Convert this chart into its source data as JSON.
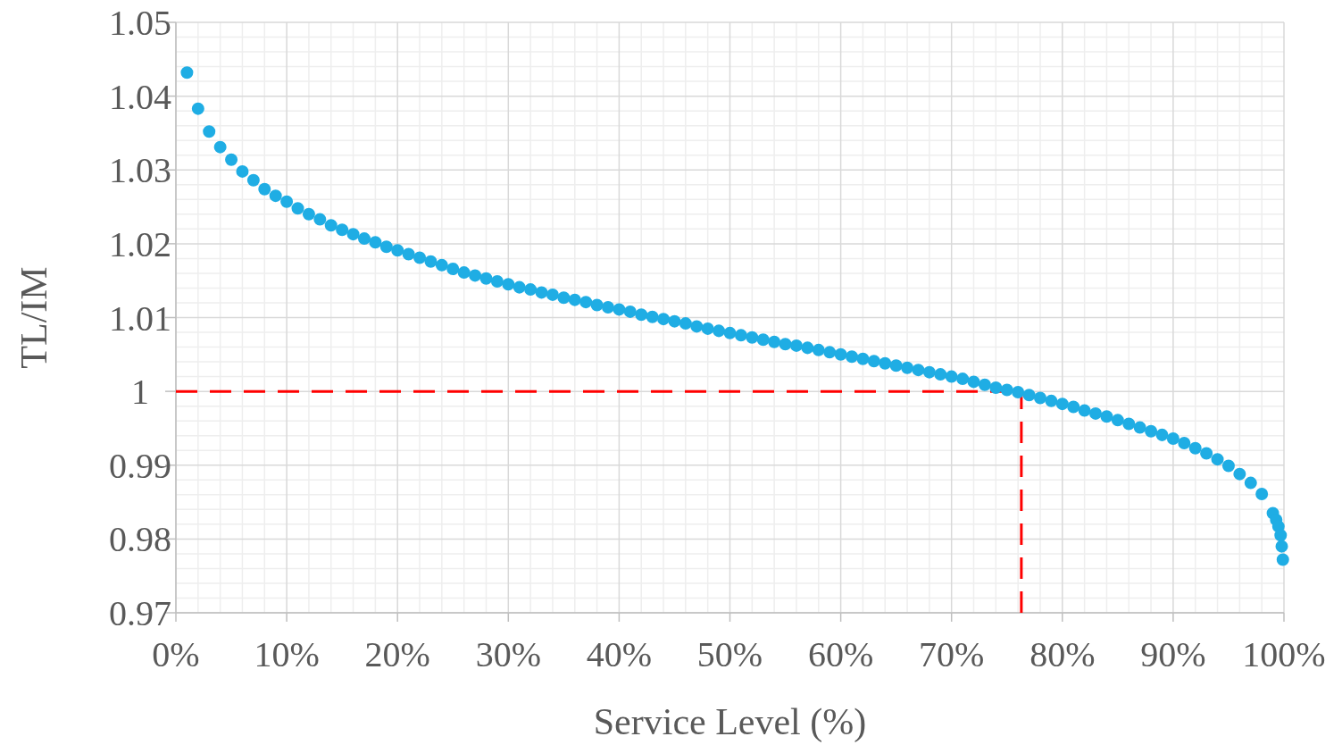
{
  "chart_data": {
    "type": "scatter",
    "xlabel": "Service Level (%)",
    "ylabel": "TL/IM",
    "xlim": [
      0,
      100
    ],
    "ylim": [
      0.97,
      1.05
    ],
    "xticks": [
      {
        "value": 0,
        "label": "0%"
      },
      {
        "value": 10,
        "label": "10%"
      },
      {
        "value": 20,
        "label": "20%"
      },
      {
        "value": 30,
        "label": "30%"
      },
      {
        "value": 40,
        "label": "40%"
      },
      {
        "value": 50,
        "label": "50%"
      },
      {
        "value": 60,
        "label": "60%"
      },
      {
        "value": 70,
        "label": "70%"
      },
      {
        "value": 80,
        "label": "80%"
      },
      {
        "value": 90,
        "label": "90%"
      },
      {
        "value": 100,
        "label": "100%"
      }
    ],
    "yticks": [
      {
        "value": 0.97,
        "label": "0.97"
      },
      {
        "value": 0.98,
        "label": "0.98"
      },
      {
        "value": 0.99,
        "label": "0.99"
      },
      {
        "value": 1,
        "label": "1"
      },
      {
        "value": 1.01,
        "label": "1.01"
      },
      {
        "value": 1.02,
        "label": "1.02"
      },
      {
        "value": 1.03,
        "label": "1.03"
      },
      {
        "value": 1.04,
        "label": "1.04"
      },
      {
        "value": 1.05,
        "label": "1.05"
      }
    ],
    "grid": true,
    "marker": "circle",
    "ref_lines": [
      {
        "axis": "y",
        "value": 1,
        "color": "#ff0000",
        "line_style": "dashed"
      },
      {
        "axis": "x",
        "value": 76.3,
        "color": "#ff0000",
        "line_style": "dashed"
      }
    ],
    "series": [
      {
        "color": "#1fade4",
        "x": [
          1,
          2,
          3,
          4,
          5,
          6,
          7,
          8,
          9,
          10,
          11,
          12,
          13,
          14,
          15,
          16,
          17,
          18,
          19,
          20,
          21,
          22,
          23,
          24,
          25,
          26,
          27,
          28,
          29,
          30,
          31,
          32,
          33,
          34,
          35,
          36,
          37,
          38,
          39,
          40,
          41,
          42,
          43,
          44,
          45,
          46,
          47,
          48,
          49,
          50,
          51,
          52,
          53,
          54,
          55,
          56,
          57,
          58,
          59,
          60,
          61,
          62,
          63,
          64,
          65,
          66,
          67,
          68,
          69,
          70,
          71,
          72,
          73,
          74,
          75,
          76,
          77,
          78,
          79,
          80,
          81,
          82,
          83,
          84,
          85,
          86,
          87,
          88,
          89,
          90,
          91,
          92,
          93,
          94,
          95,
          96,
          97,
          98,
          99,
          99.3,
          99.5,
          99.7,
          99.8,
          99.9
        ],
        "values": [
          1.0432,
          1.0383,
          1.0352,
          1.0331,
          1.0314,
          1.0298,
          1.0286,
          1.0274,
          1.0265,
          1.0257,
          1.0248,
          1.024,
          1.0233,
          1.0225,
          1.0219,
          1.0213,
          1.0207,
          1.0202,
          1.0196,
          1.0191,
          1.0186,
          1.0181,
          1.0176,
          1.0171,
          1.0166,
          1.0161,
          1.0157,
          1.0153,
          1.0149,
          1.0145,
          1.0141,
          1.0138,
          1.0134,
          1.0131,
          1.0127,
          1.0124,
          1.0121,
          1.0117,
          1.0114,
          1.0111,
          1.0108,
          1.0104,
          1.0101,
          1.0098,
          1.0095,
          1.0092,
          1.0088,
          1.0085,
          1.0082,
          1.0079,
          1.0076,
          1.0073,
          1.007,
          1.0067,
          1.0064,
          1.0062,
          1.0059,
          1.0056,
          1.0053,
          1.005,
          1.0047,
          1.0044,
          1.0041,
          1.0038,
          1.0035,
          1.0032,
          1.0029,
          1.0026,
          1.0023,
          1.002,
          1.0017,
          1.0013,
          1.0009,
          1.0005,
          1.0002,
          0.9999,
          0.9995,
          0.9991,
          0.9987,
          0.9983,
          0.9979,
          0.9974,
          0.997,
          0.9966,
          0.9961,
          0.9956,
          0.9951,
          0.9946,
          0.9941,
          0.9936,
          0.993,
          0.9923,
          0.9916,
          0.9908,
          0.9899,
          0.9888,
          0.9876,
          0.9861,
          0.9835,
          0.9826,
          0.9817,
          0.9805,
          0.979,
          0.9772
        ]
      }
    ]
  }
}
